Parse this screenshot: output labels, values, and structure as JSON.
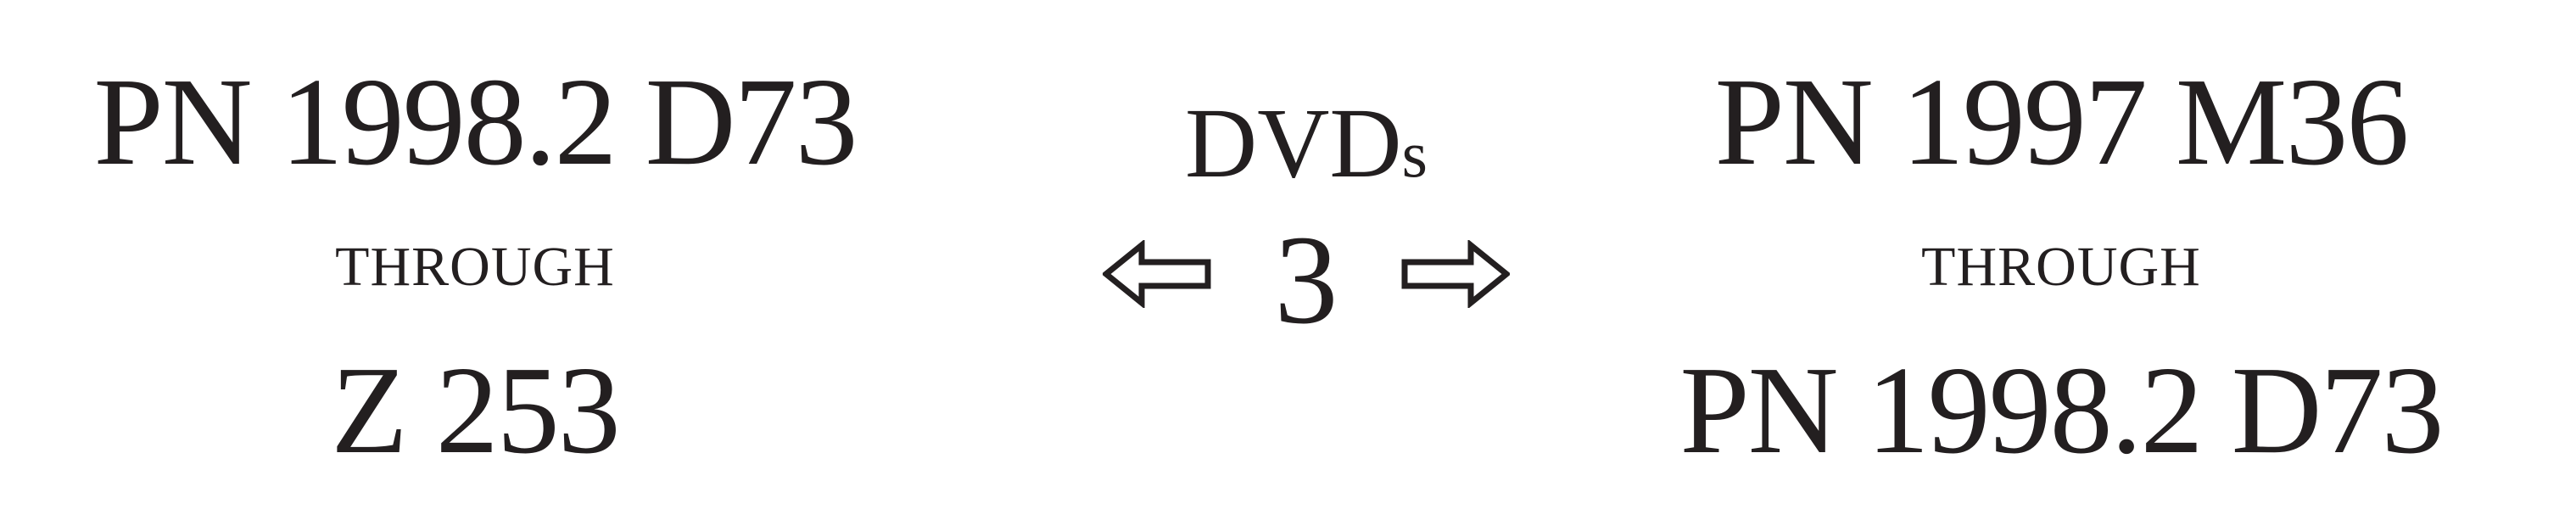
{
  "left_range": {
    "start": "PN 1998.2 D73",
    "through": "THROUGH",
    "end": "Z 253"
  },
  "center": {
    "media_label_main": "DVD",
    "media_label_suffix": "s",
    "count": "3",
    "left_arrow_icon": "hollow-left-arrow-icon",
    "right_arrow_icon": "hollow-right-arrow-icon"
  },
  "right_range": {
    "start": "PN 1997 M36",
    "through": "THROUGH",
    "end": "PN 1998.2 D73"
  }
}
